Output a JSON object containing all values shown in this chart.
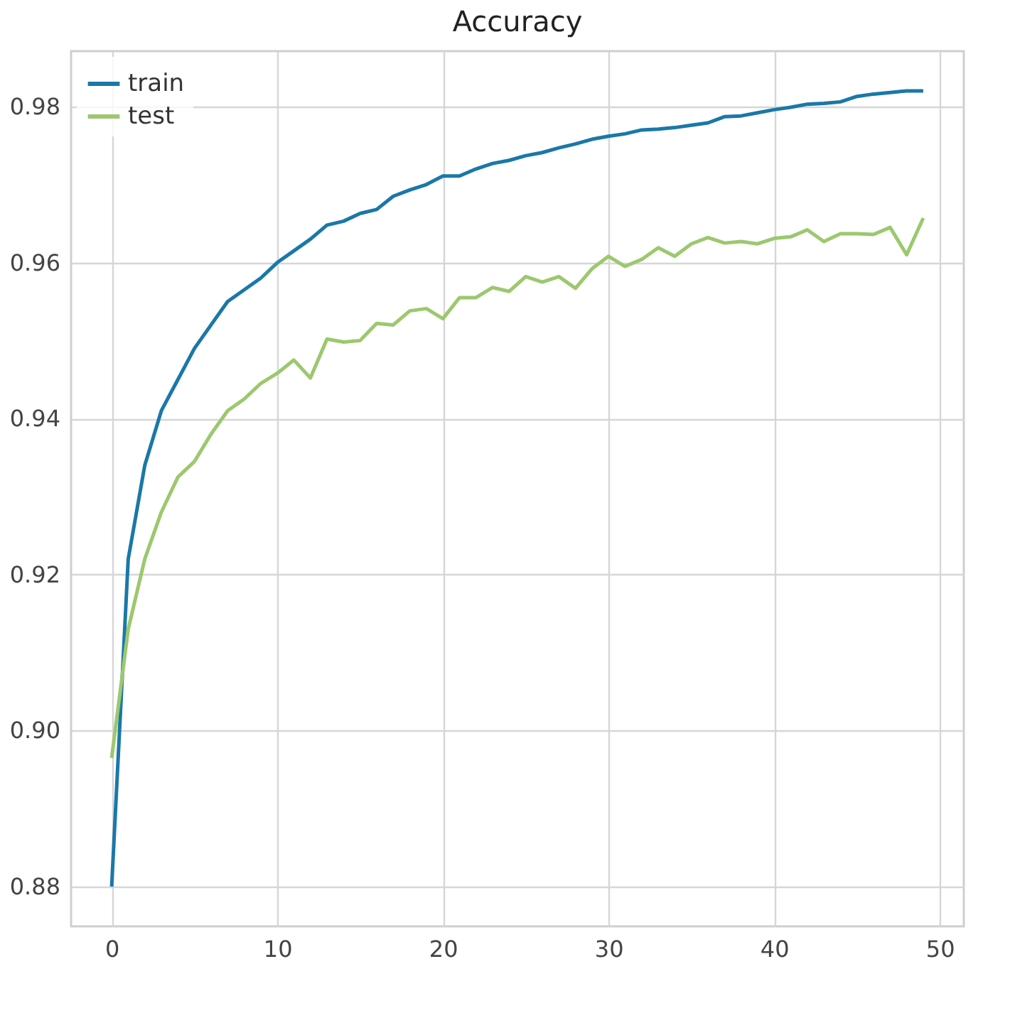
{
  "chart_data": {
    "type": "line",
    "title": "Accuracy",
    "x": [
      0,
      1,
      2,
      3,
      4,
      5,
      6,
      7,
      8,
      9,
      10,
      11,
      12,
      13,
      14,
      15,
      16,
      17,
      18,
      19,
      20,
      21,
      22,
      23,
      24,
      25,
      26,
      27,
      28,
      29,
      30,
      31,
      32,
      33,
      34,
      35,
      36,
      37,
      38,
      39,
      40,
      41,
      42,
      43,
      44,
      45,
      46,
      47,
      48,
      49
    ],
    "series": [
      {
        "name": "train",
        "color": "#1a78a8",
        "values": [
          0.88,
          0.922,
          0.934,
          0.941,
          0.945,
          0.949,
          0.952,
          0.955,
          0.9565,
          0.958,
          0.96,
          0.9615,
          0.963,
          0.9648,
          0.9653,
          0.9663,
          0.9668,
          0.9685,
          0.9693,
          0.97,
          0.9711,
          0.9711,
          0.972,
          0.9727,
          0.9731,
          0.9737,
          0.9741,
          0.9747,
          0.9752,
          0.9758,
          0.9762,
          0.9765,
          0.977,
          0.9771,
          0.9773,
          0.9776,
          0.9779,
          0.9787,
          0.9788,
          0.9792,
          0.9796,
          0.9799,
          0.9803,
          0.9804,
          0.9806,
          0.9813,
          0.9816,
          0.9818,
          0.982,
          0.982
        ]
      },
      {
        "name": "test",
        "color": "#9cc86e",
        "values": [
          0.8965,
          0.913,
          0.922,
          0.928,
          0.9325,
          0.9345,
          0.938,
          0.941,
          0.9425,
          0.9445,
          0.9458,
          0.9475,
          0.9452,
          0.9502,
          0.9498,
          0.95,
          0.9522,
          0.952,
          0.9538,
          0.9541,
          0.9528,
          0.9555,
          0.9555,
          0.9568,
          0.9563,
          0.9582,
          0.9575,
          0.9582,
          0.9567,
          0.9592,
          0.9608,
          0.9595,
          0.9604,
          0.9619,
          0.9608,
          0.9624,
          0.9632,
          0.9625,
          0.9627,
          0.9624,
          0.9631,
          0.9633,
          0.9642,
          0.9627,
          0.9637,
          0.9637,
          0.9636,
          0.9645,
          0.961,
          0.9657
        ]
      }
    ],
    "xlim": [
      -2.45,
      51.45
    ],
    "xticks": [
      0,
      10,
      20,
      30,
      40,
      50
    ],
    "ylim": [
      0.8749,
      0.9871
    ],
    "yticks": [
      {
        "value": 0.88,
        "label": "0.88"
      },
      {
        "value": 0.9,
        "label": "0.90"
      },
      {
        "value": 0.92,
        "label": "0.92"
      },
      {
        "value": 0.94,
        "label": "0.94"
      },
      {
        "value": 0.96,
        "label": "0.96"
      },
      {
        "value": 0.98,
        "label": "0.98"
      }
    ],
    "grid": true,
    "legend": "top left",
    "marker": "none",
    "line_style": "solid"
  }
}
